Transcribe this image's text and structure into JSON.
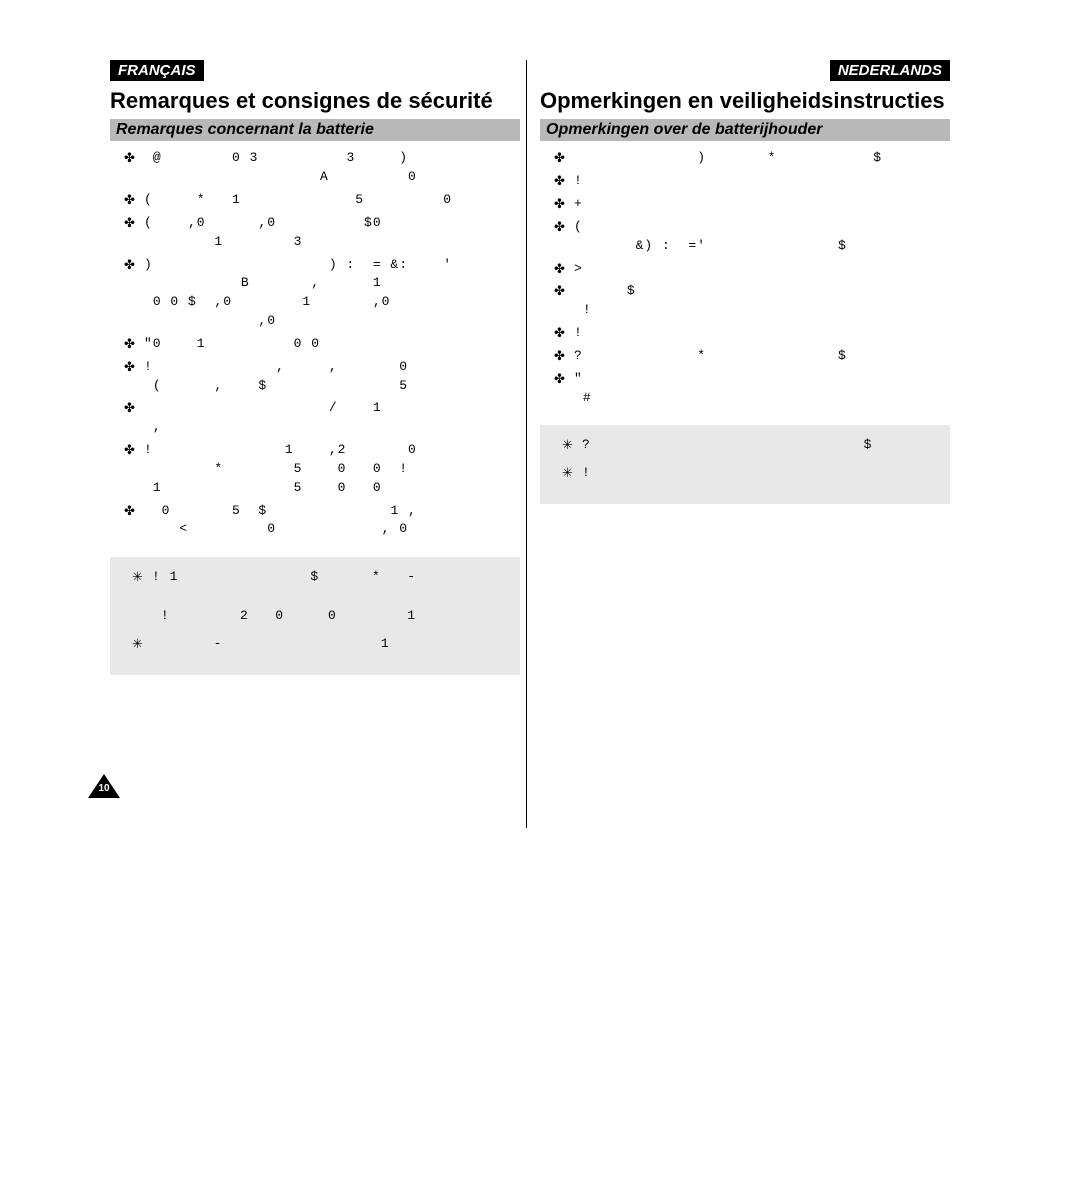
{
  "page_number": "10",
  "colors": {
    "bg": "#ffffff",
    "text": "#000000",
    "lang_badge_bg": "#000000",
    "lang_badge_text": "#ffffff",
    "section_bar_bg": "#b8b8b8",
    "note_box_bg": "#e8e8e8",
    "divider": "#000000"
  },
  "left": {
    "lang_label": "FRANÇAIS",
    "main_title": "Remarques et consignes de sécurité",
    "section_title": "Remarques concernant la batterie",
    "bullet_glyph": "✤",
    "bullets": [
      " @        0 3          3     )\n                    A         0",
      "(     *   1             5         0",
      "(    ,0      ,0          $0\n        1        3",
      ")                    ) :  = &:    '\n           B       ,      1\n 0 0 $  ,0        1       ,0\n             ,0",
      "\"0    1          0 0",
      "!              ,     ,       0\n (      ,    $               5",
      "                     /    1\n ,",
      "!               1    ,2       0\n        *        5    0   0  !\n 1               5    0   0",
      "  0       5  $              1 ,\n    <         0            , 0"
    ],
    "note_glyph": "✳",
    "notes": [
      "! 1               $      *   -\n\n !        2   0     0        1",
      "       -                  1"
    ]
  },
  "right": {
    "lang_label": "NEDERLANDS",
    "main_title": "Opmerkingen en veiligheidsinstructies",
    "section_title": "Opmerkingen over de batterijhouder",
    "bullet_glyph": "✤",
    "bullets": [
      "              )       *           $\n",
      "!",
      "+",
      "(\n       &) :  ='               $",
      ">",
      "      $\n !",
      "!\n",
      "?             *               $\n",
      "\"\n #"
    ],
    "note_glyph": "✳",
    "notes": [
      "?                               $\n",
      "!"
    ]
  }
}
